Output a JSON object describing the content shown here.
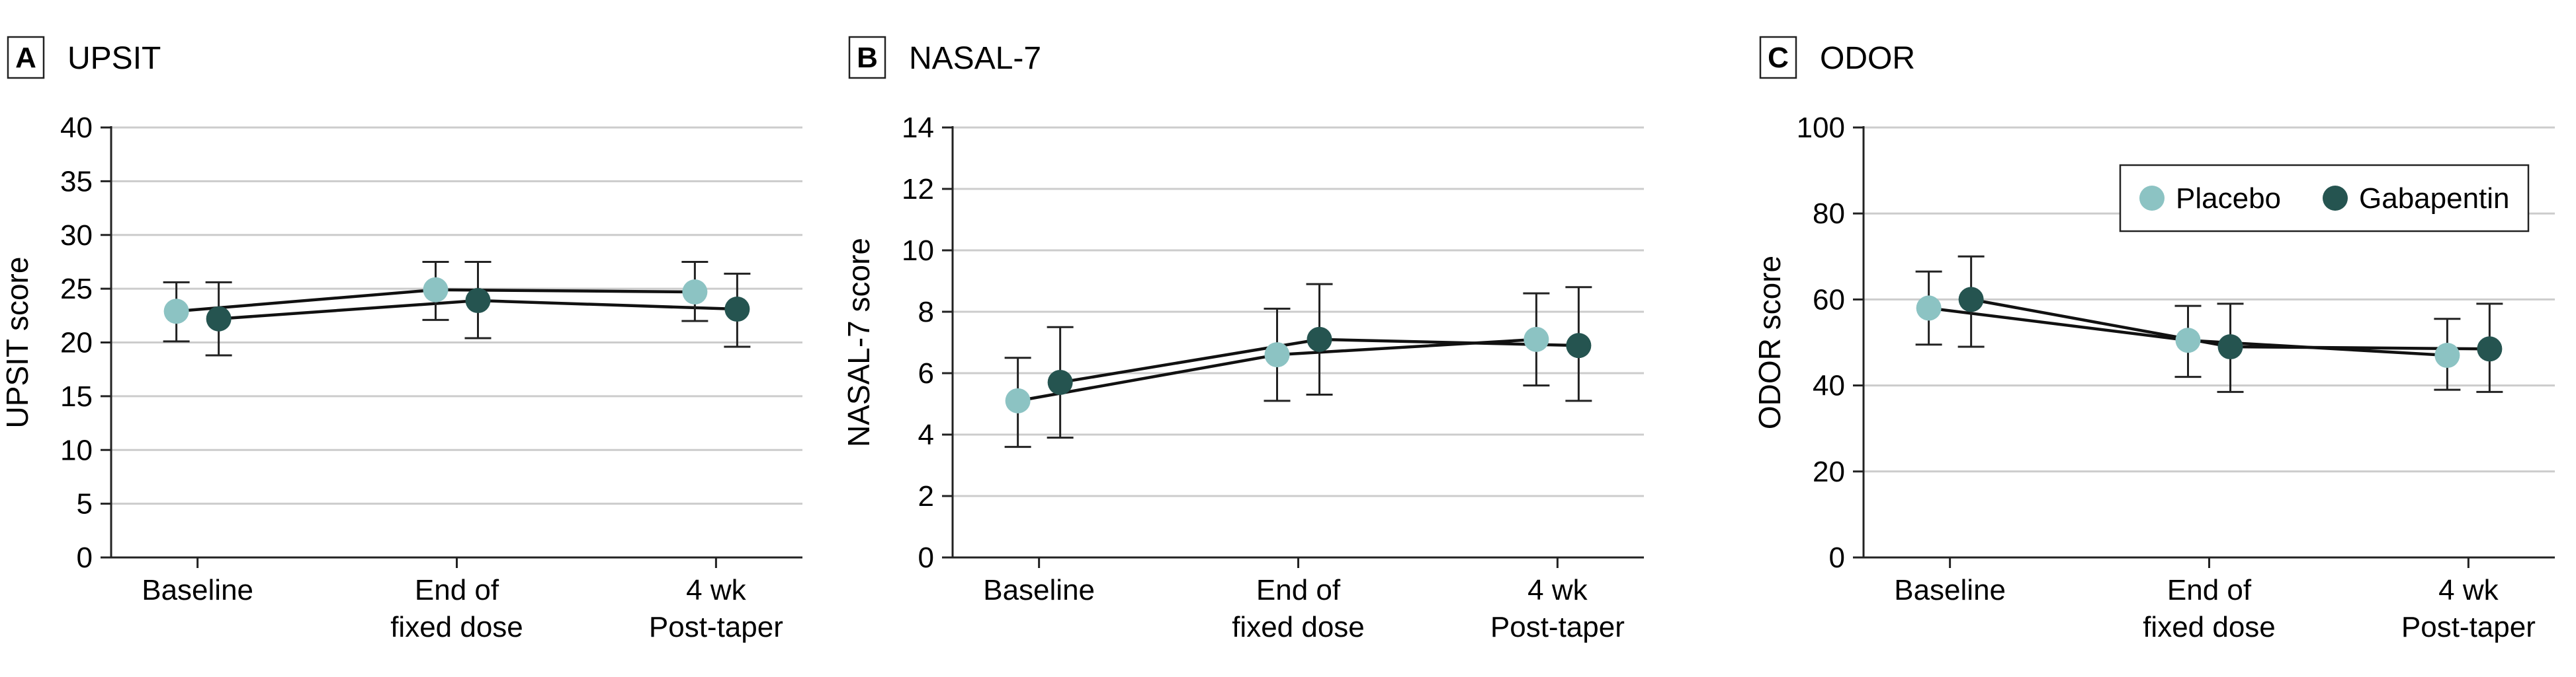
{
  "colors": {
    "placebo": "#8cc3c3",
    "gabapentin": "#255450"
  },
  "legend": {
    "items": [
      "Placebo",
      "Gabapentin"
    ]
  },
  "chart_data": [
    {
      "type": "line",
      "letter": "A",
      "title": "UPSIT",
      "ylabel": "UPSIT score",
      "xlabel": "",
      "ylim": [
        0,
        40
      ],
      "yticks": [
        0,
        5,
        10,
        15,
        20,
        25,
        30,
        35,
        40
      ],
      "categories": [
        [
          "Baseline"
        ],
        [
          "End of",
          "fixed dose"
        ],
        [
          "4 wk",
          "Post-taper"
        ]
      ],
      "series": [
        {
          "name": "Placebo",
          "values": [
            22.9,
            24.9,
            24.7
          ],
          "lower": [
            20.1,
            22.1,
            22.0
          ],
          "upper": [
            25.6,
            27.5,
            27.5
          ]
        },
        {
          "name": "Gabapentin",
          "values": [
            22.2,
            23.9,
            23.1
          ],
          "lower": [
            18.8,
            20.4,
            19.6
          ],
          "upper": [
            25.6,
            27.5,
            26.4
          ]
        }
      ],
      "legend": false
    },
    {
      "type": "line",
      "letter": "B",
      "title": "NASAL-7",
      "ylabel": "NASAL-7 score",
      "xlabel": "",
      "ylim": [
        0,
        14
      ],
      "yticks": [
        0,
        2,
        4,
        6,
        8,
        10,
        12,
        14
      ],
      "categories": [
        [
          "Baseline"
        ],
        [
          "End of",
          "fixed dose"
        ],
        [
          "4 wk",
          "Post-taper"
        ]
      ],
      "series": [
        {
          "name": "Placebo",
          "values": [
            5.1,
            6.6,
            7.1
          ],
          "lower": [
            3.6,
            5.1,
            5.6
          ],
          "upper": [
            6.5,
            8.1,
            8.6
          ]
        },
        {
          "name": "Gabapentin",
          "values": [
            5.7,
            7.1,
            6.9
          ],
          "lower": [
            3.9,
            5.3,
            5.1
          ],
          "upper": [
            7.5,
            8.9,
            8.8
          ]
        }
      ],
      "legend": false
    },
    {
      "type": "line",
      "letter": "C",
      "title": "ODOR",
      "ylabel": "ODOR score",
      "xlabel": "",
      "ylim": [
        0,
        100
      ],
      "yticks": [
        0,
        20,
        40,
        60,
        80,
        100
      ],
      "categories": [
        [
          "Baseline"
        ],
        [
          "End of",
          "fixed dose"
        ],
        [
          "4 wk",
          "Post-taper"
        ]
      ],
      "series": [
        {
          "name": "Placebo",
          "values": [
            58,
            50.5,
            47
          ],
          "lower": [
            49.5,
            42,
            39
          ],
          "upper": [
            66.5,
            58.5,
            55.5
          ]
        },
        {
          "name": "Gabapentin",
          "values": [
            60,
            49,
            48.5
          ],
          "lower": [
            49,
            38.5,
            38.5
          ],
          "upper": [
            70,
            59,
            59
          ]
        }
      ],
      "legend": true,
      "legend_position": "top-right"
    }
  ]
}
